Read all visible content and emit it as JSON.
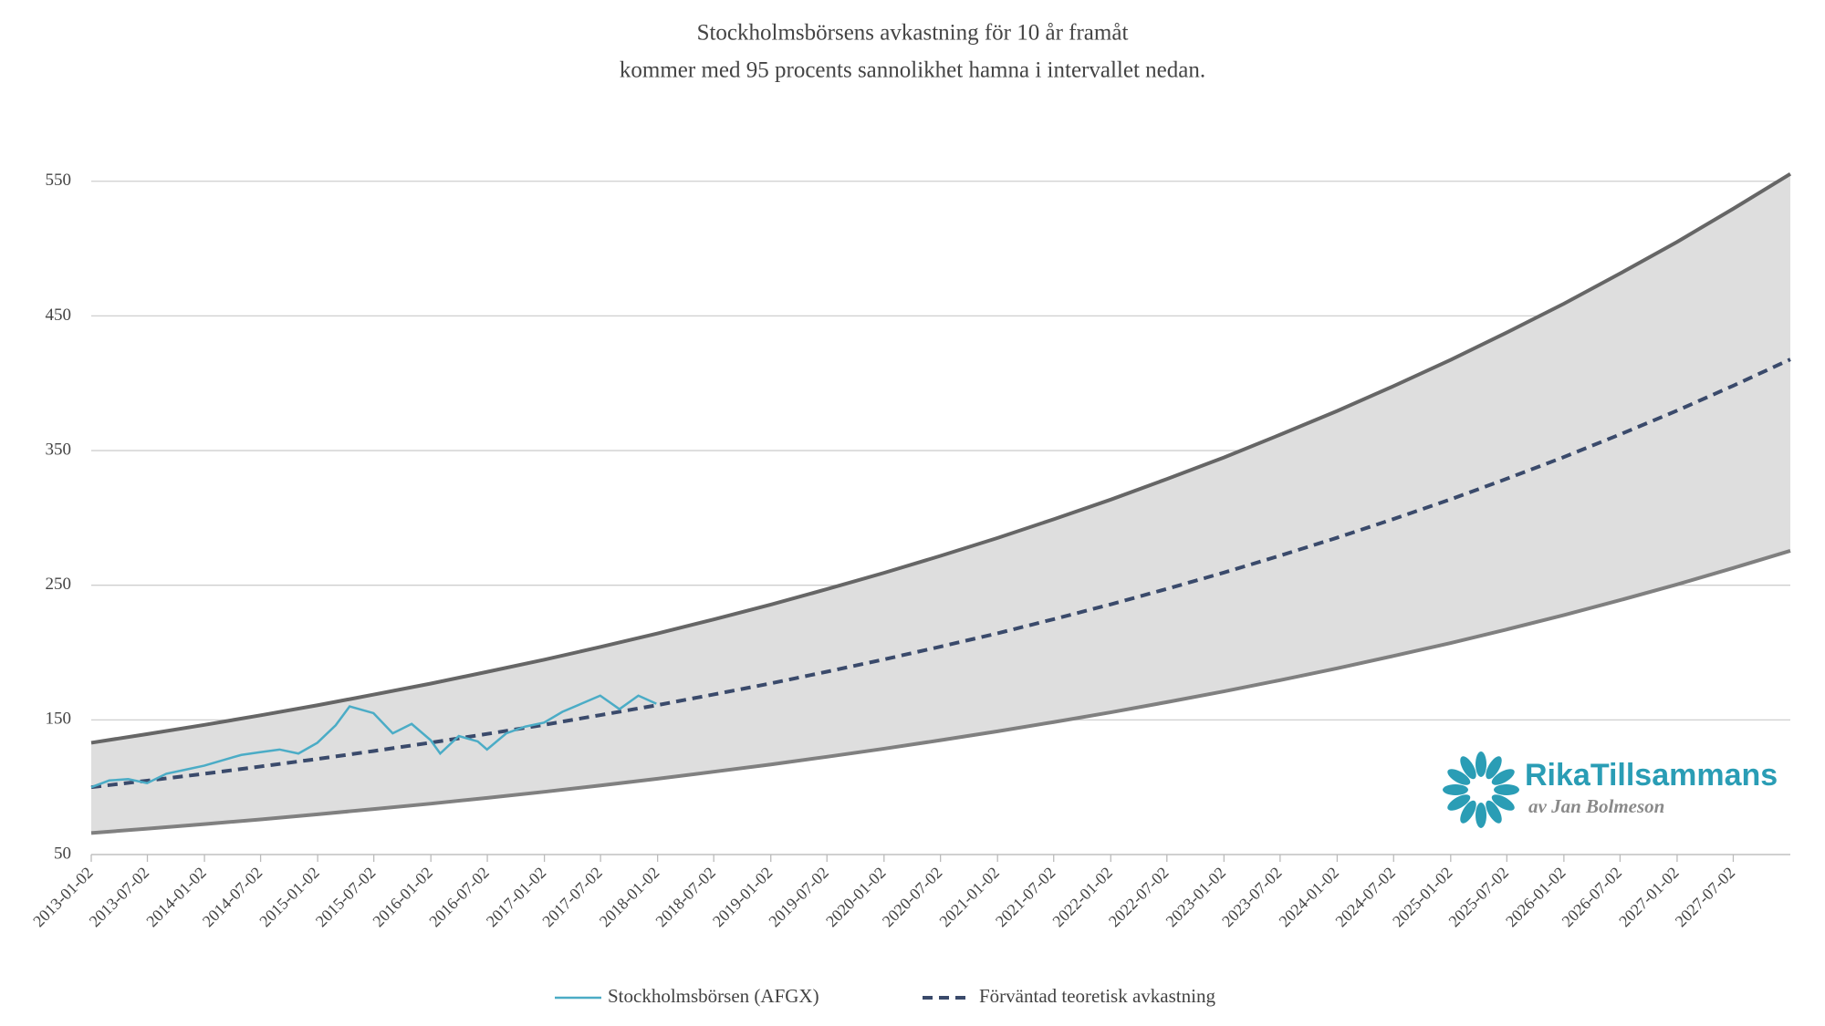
{
  "chart_data": {
    "type": "line",
    "title": "Stockholmsbörsens avkastning för 10 år framåt",
    "subtitle": "kommer med 95 procents sannolikhet hamna i intervallet nedan.",
    "xlim": [
      "2013-01-02",
      "2028-01-02"
    ],
    "xticks": [
      "2013-01-02",
      "2013-07-02",
      "2014-01-02",
      "2014-07-02",
      "2015-01-02",
      "2015-07-02",
      "2016-01-02",
      "2016-07-02",
      "2017-01-02",
      "2017-07-02",
      "2018-01-02",
      "2018-07-02",
      "2019-01-02",
      "2019-07-02",
      "2020-01-02",
      "2020-07-02",
      "2021-01-02",
      "2021-07-02",
      "2022-01-02",
      "2022-07-02",
      "2023-01-02",
      "2023-07-02",
      "2024-01-02",
      "2024-07-02",
      "2025-01-02",
      "2025-07-02",
      "2026-01-02",
      "2026-07-02",
      "2027-01-02",
      "2027-07-02"
    ],
    "ylim": [
      50,
      560
    ],
    "yticks": [
      50,
      150,
      250,
      350,
      450,
      550
    ],
    "grid": true,
    "legend": "bottom",
    "x": [
      "2013-01-02",
      "2013-07-02",
      "2014-01-02",
      "2014-07-02",
      "2015-01-02",
      "2015-07-02",
      "2016-01-02",
      "2016-07-02",
      "2017-01-02",
      "2017-07-02",
      "2018-01-02",
      "2018-07-02",
      "2019-01-02",
      "2019-07-02",
      "2020-01-02",
      "2020-07-02",
      "2021-01-02",
      "2021-07-02",
      "2022-01-02",
      "2022-07-02",
      "2023-01-02",
      "2023-07-02",
      "2024-01-02",
      "2024-07-02",
      "2025-01-02",
      "2025-07-02",
      "2026-01-02",
      "2026-07-02",
      "2027-01-02",
      "2027-07-02",
      "2028-01-02"
    ],
    "band": {
      "fill": "#dedede",
      "upper_color": "#666666",
      "lower_color": "#808080",
      "upper": [
        133,
        139.5,
        146.3,
        153.4,
        160.9,
        168.8,
        177.0,
        185.7,
        194.7,
        204.2,
        214.2,
        224.6,
        235.6,
        247.1,
        259.2,
        271.8,
        285.1,
        299.0,
        313.6,
        328.9,
        344.9,
        361.8,
        379.4,
        397.9,
        417.4,
        437.7,
        459.1,
        481.5,
        505.0,
        529.6,
        555.5
      ],
      "lower": [
        66,
        69.2,
        72.6,
        76.1,
        79.9,
        83.8,
        87.8,
        92.1,
        96.6,
        101.3,
        106.3,
        111.5,
        116.9,
        122.6,
        128.6,
        134.9,
        141.5,
        148.4,
        155.6,
        163.2,
        171.2,
        179.5,
        188.3,
        197.5,
        207.1,
        217.2,
        227.8,
        238.9,
        250.6,
        262.8,
        275.6
      ]
    },
    "series": [
      {
        "name": "Stockholmsbörsen (AFGX)",
        "color": "#4bacc6",
        "dashed": false,
        "x": [
          "2013-01-02",
          "2013-03-01",
          "2013-05-01",
          "2013-07-01",
          "2013-09-01",
          "2013-11-01",
          "2014-01-01",
          "2014-03-01",
          "2014-05-01",
          "2014-07-01",
          "2014-09-01",
          "2014-11-01",
          "2015-01-01",
          "2015-03-01",
          "2015-04-15",
          "2015-07-01",
          "2015-09-01",
          "2015-11-01",
          "2016-01-01",
          "2016-02-01",
          "2016-04-01",
          "2016-06-01",
          "2016-07-01",
          "2016-09-01",
          "2016-11-01",
          "2017-01-01",
          "2017-03-01",
          "2017-05-01",
          "2017-07-01",
          "2017-09-01",
          "2017-11-01",
          "2017-12-29"
        ],
        "values": [
          100,
          105,
          106,
          103,
          110,
          113,
          116,
          120,
          124,
          126,
          128,
          125,
          133,
          146,
          160,
          155,
          140,
          147,
          135,
          125,
          138,
          134,
          128,
          140,
          145,
          148,
          156,
          162,
          168,
          158,
          168,
          162
        ]
      },
      {
        "name": "Förväntad teoretisk avkastning",
        "color": "#3a4a6b",
        "dashed": true,
        "values": [
          100,
          104.9,
          110,
          115.4,
          121,
          126.9,
          133.1,
          139.6,
          146.4,
          153.6,
          161,
          168.9,
          177.1,
          185.8,
          194.9,
          204.4,
          214.3,
          224.8,
          235.8,
          247.3,
          259.4,
          272,
          285.3,
          299.2,
          313.8,
          329.1,
          345.2,
          362,
          379.7,
          398.2,
          417.7
        ]
      }
    ]
  },
  "logo": {
    "name": "RikaTillsammans",
    "tagline": "av Jan Bolmeson"
  }
}
